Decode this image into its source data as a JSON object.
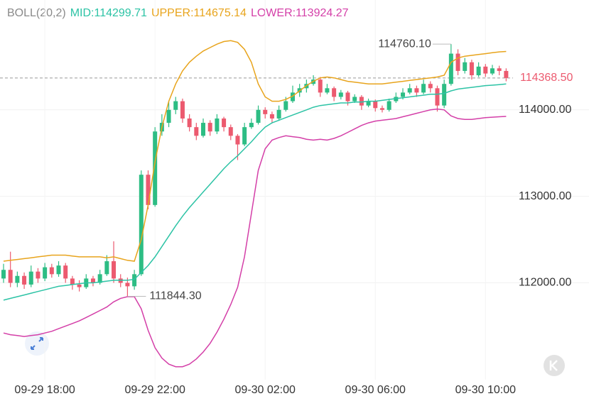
{
  "chart_data": {
    "type": "candlestick",
    "indicator": "BOLL(20,2)",
    "categories": [
      null,
      null,
      null,
      null,
      null,
      null,
      "09-29 18:00",
      null,
      null,
      null,
      null,
      null,
      null,
      null,
      null,
      null,
      null,
      null,
      null,
      null,
      null,
      null,
      "09-29 22:00",
      null,
      null,
      null,
      null,
      null,
      null,
      null,
      null,
      null,
      null,
      null,
      null,
      null,
      null,
      null,
      "09-30 02:00",
      null,
      null,
      null,
      null,
      null,
      null,
      null,
      null,
      null,
      null,
      null,
      null,
      null,
      null,
      null,
      "09-30 06:00",
      null,
      null,
      null,
      null,
      null,
      null,
      null,
      null,
      null,
      null,
      null,
      null,
      null,
      null,
      null,
      "09-30 10:00",
      null,
      null,
      null
    ],
    "ohlc": [
      [
        112050,
        112220,
        112000,
        112150
      ],
      [
        112150,
        112360,
        111950,
        112000
      ],
      [
        112000,
        112130,
        111950,
        112080
      ],
      [
        112080,
        112120,
        111930,
        111980
      ],
      [
        111980,
        112200,
        111950,
        112130
      ],
      [
        112130,
        112170,
        112000,
        112050
      ],
      [
        112050,
        112230,
        112020,
        112180
      ],
      [
        112180,
        112220,
        112060,
        112100
      ],
      [
        112100,
        112250,
        112070,
        112200
      ],
      [
        112200,
        112230,
        112000,
        112050
      ],
      [
        112050,
        112080,
        111920,
        111980
      ],
      [
        111980,
        112030,
        111900,
        111950
      ],
      [
        111950,
        112100,
        111930,
        112050
      ],
      [
        112050,
        112080,
        111960,
        112000
      ],
      [
        112000,
        112150,
        111980,
        112100
      ],
      [
        112100,
        112320,
        112080,
        112250
      ],
      [
        112250,
        112480,
        112000,
        112050
      ],
      [
        112050,
        112100,
        111950,
        112000
      ],
      [
        112000,
        112060,
        111844.3,
        111960
      ],
      [
        111960,
        112150,
        111920,
        112100
      ],
      [
        112100,
        113300,
        112080,
        113250
      ],
      [
        113250,
        113300,
        112850,
        112900
      ],
      [
        112900,
        113800,
        112880,
        113750
      ],
      [
        113750,
        113950,
        113700,
        113850
      ],
      [
        113850,
        114100,
        113800,
        114000
      ],
      [
        114000,
        114150,
        113950,
        114100
      ],
      [
        114100,
        114130,
        113850,
        113900
      ],
      [
        113900,
        113950,
        113750,
        113800
      ],
      [
        113800,
        113850,
        113650,
        113700
      ],
      [
        113700,
        113900,
        113680,
        113850
      ],
      [
        113850,
        113880,
        113700,
        113750
      ],
      [
        113750,
        113950,
        113720,
        113900
      ],
      [
        113900,
        113920,
        113750,
        113800
      ],
      [
        113800,
        113830,
        113650,
        113700
      ],
      [
        113700,
        113720,
        113420,
        113600
      ],
      [
        113600,
        113850,
        113580,
        113800
      ],
      [
        113800,
        113900,
        113780,
        113850
      ],
      [
        113850,
        114050,
        113830,
        114000
      ],
      [
        114000,
        114030,
        113900,
        113950
      ],
      [
        113950,
        113980,
        113850,
        113900
      ],
      [
        113900,
        114050,
        113880,
        114000
      ],
      [
        114000,
        114150,
        113980,
        114100
      ],
      [
        114100,
        114280,
        114080,
        114200
      ],
      [
        114200,
        114300,
        114150,
        114250
      ],
      [
        114250,
        114350,
        114200,
        114300
      ],
      [
        114300,
        114400,
        114280,
        114350
      ],
      [
        114350,
        114380,
        114150,
        114200
      ],
      [
        114200,
        114300,
        114180,
        114250
      ],
      [
        114250,
        114270,
        114100,
        114150
      ],
      [
        114150,
        114230,
        114120,
        114200
      ],
      [
        114200,
        114220,
        114050,
        114100
      ],
      [
        114100,
        114180,
        114080,
        114150
      ],
      [
        114150,
        114170,
        114000,
        114050
      ],
      [
        114050,
        114130,
        114030,
        114100
      ],
      [
        114100,
        114120,
        113980,
        114020
      ],
      [
        114020,
        114050,
        113970,
        114000
      ],
      [
        114000,
        114130,
        113980,
        114100
      ],
      [
        114100,
        114200,
        114080,
        114150
      ],
      [
        114150,
        114250,
        114120,
        114200
      ],
      [
        114200,
        114300,
        114180,
        114250
      ],
      [
        114250,
        114280,
        114150,
        114200
      ],
      [
        114200,
        114350,
        114180,
        114300
      ],
      [
        114300,
        114330,
        114200,
        114250
      ],
      [
        114250,
        114280,
        113980,
        114050
      ],
      [
        114050,
        114350,
        114020,
        114300
      ],
      [
        114300,
        114760.1,
        114280,
        114650
      ],
      [
        114650,
        114700,
        114400,
        114450
      ],
      [
        114450,
        114600,
        114420,
        114550
      ],
      [
        114550,
        114580,
        114350,
        114400
      ],
      [
        114400,
        114550,
        114380,
        114500
      ],
      [
        114500,
        114530,
        114380,
        114420
      ],
      [
        114420,
        114520,
        114400,
        114480
      ],
      [
        114480,
        114510,
        114400,
        114450
      ],
      [
        114450,
        114480,
        114330,
        114368.5
      ]
    ],
    "up_color": "#2dbd84",
    "down_color": "#ec5a6f",
    "series": [
      {
        "label": "MID:114299.71",
        "color": "#2cc3a5",
        "values": [
          111800,
          111820,
          111840,
          111860,
          111880,
          111900,
          111920,
          111940,
          111960,
          111970,
          111980,
          111990,
          112000,
          112000,
          112010,
          112020,
          112030,
          112030,
          112030,
          112040,
          112120,
          112200,
          112300,
          112420,
          112540,
          112660,
          112770,
          112870,
          112960,
          113050,
          113140,
          113230,
          113320,
          113400,
          113470,
          113550,
          113630,
          113720,
          113800,
          113850,
          113880,
          113910,
          113940,
          113970,
          114000,
          114030,
          114050,
          114060,
          114070,
          114080,
          114080,
          114090,
          114090,
          114100,
          114100,
          114110,
          114120,
          114130,
          114140,
          114150,
          114160,
          114170,
          114180,
          114180,
          114190,
          114220,
          114240,
          114250,
          114260,
          114270,
          114280,
          114285,
          114292,
          114299.71
        ]
      },
      {
        "label": "UPPER:114675.14",
        "color": "#e8a41c",
        "values": [
          112250,
          112260,
          112270,
          112280,
          112290,
          112300,
          112310,
          112320,
          112320,
          112320,
          112310,
          112300,
          112300,
          112300,
          112300,
          112290,
          112300,
          112280,
          112260,
          112250,
          112500,
          112900,
          113400,
          113800,
          114100,
          114300,
          114450,
          114550,
          114620,
          114680,
          114720,
          114760,
          114790,
          114800,
          114780,
          114700,
          114550,
          114300,
          114150,
          114100,
          114100,
          114120,
          114160,
          114220,
          114280,
          114330,
          114370,
          114380,
          114370,
          114350,
          114330,
          114320,
          114310,
          114300,
          114300,
          114300,
          114310,
          114320,
          114330,
          114340,
          114350,
          114360,
          114370,
          114380,
          114400,
          114550,
          114600,
          114620,
          114630,
          114640,
          114650,
          114660,
          114670,
          114675.14
        ]
      },
      {
        "label": "LOWER:113924.27",
        "color": "#d43fa8",
        "values": [
          111420,
          111400,
          111390,
          111380,
          111390,
          111400,
          111420,
          111440,
          111470,
          111500,
          111530,
          111560,
          111600,
          111640,
          111680,
          111720,
          111780,
          111820,
          111840,
          111840,
          111700,
          111450,
          111250,
          111130,
          111060,
          111030,
          111030,
          111060,
          111120,
          111200,
          111300,
          111430,
          111580,
          111750,
          111950,
          112300,
          112800,
          113300,
          113550,
          113650,
          113680,
          113700,
          113690,
          113680,
          113660,
          113650,
          113660,
          113650,
          113670,
          113700,
          113740,
          113780,
          113820,
          113850,
          113870,
          113880,
          113890,
          113900,
          113920,
          113940,
          113960,
          113980,
          114000,
          114010,
          114000,
          113930,
          113900,
          113890,
          113890,
          113900,
          113910,
          113915,
          113920,
          113924.27
        ]
      }
    ],
    "ylim": [
      110880,
      115270
    ],
    "yticks": [
      {
        "value": 112000,
        "label": "112000.00"
      },
      {
        "value": 113000,
        "label": "113000.00"
      },
      {
        "value": 114000,
        "label": "114000.00"
      }
    ],
    "last_price": {
      "value": 114368.5,
      "label": "114368.50"
    },
    "high_marker": {
      "value": 114760.1,
      "label": "114760.10"
    },
    "low_marker": {
      "value": 111844.3,
      "label": "111844.30"
    },
    "grid": true
  }
}
